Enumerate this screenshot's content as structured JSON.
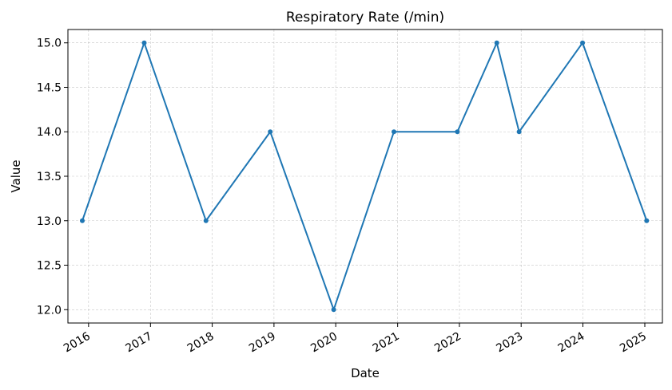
{
  "chart_data": {
    "type": "line",
    "title": "Respiratory Rate (/min)",
    "xlabel": "Date",
    "ylabel": "Value",
    "grid": true,
    "ylim": [
      11.85,
      15.15
    ],
    "xlim": [
      "2015-09-01",
      "2025-04-15"
    ],
    "yticks": [
      12.0,
      12.5,
      13.0,
      13.5,
      14.0,
      14.5,
      15.0
    ],
    "ytick_labels": [
      "12.0",
      "12.5",
      "13.0",
      "13.5",
      "14.0",
      "14.5",
      "15.0"
    ],
    "xticks": [
      "2016-01-01",
      "2017-01-01",
      "2018-01-01",
      "2019-01-01",
      "2020-01-01",
      "2021-01-01",
      "2022-01-01",
      "2023-01-01",
      "2024-01-01",
      "2025-01-01"
    ],
    "xtick_labels": [
      "2016",
      "2017",
      "2018",
      "2019",
      "2020",
      "2021",
      "2022",
      "2023",
      "2024",
      "2025"
    ],
    "x": [
      "2015-11-25",
      "2016-11-25",
      "2017-11-25",
      "2018-12-10",
      "2019-12-20",
      "2020-12-10",
      "2021-12-20",
      "2022-08-10",
      "2022-12-20",
      "2023-12-30",
      "2025-01-12"
    ],
    "series": [
      {
        "values": [
          13,
          15,
          13,
          14,
          12,
          14,
          14,
          15,
          14,
          15,
          13
        ]
      }
    ],
    "color": "#1f77b4"
  }
}
